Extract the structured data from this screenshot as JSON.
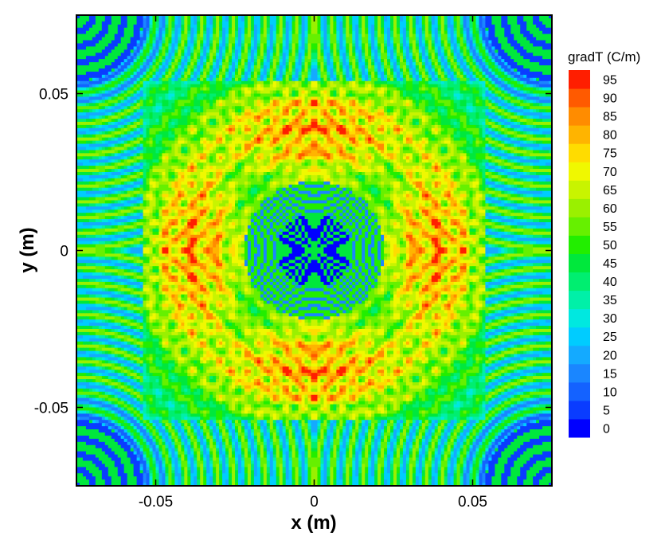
{
  "chart_data": {
    "type": "heatmap",
    "title": "",
    "xlabel": "x (m)",
    "ylabel": "y (m)",
    "xlim": [
      -0.075,
      0.075
    ],
    "ylim": [
      -0.075,
      0.075
    ],
    "x_ticks": [
      -0.05,
      0,
      0.05
    ],
    "y_ticks": [
      -0.05,
      0,
      0.05
    ],
    "x_tick_labels": [
      "-0.05",
      "0",
      "0.05"
    ],
    "y_tick_labels": [
      "-0.05",
      "0",
      "0.05"
    ],
    "colorbar": {
      "title": "gradT (C/m)",
      "levels": [
        0,
        5,
        10,
        15,
        20,
        25,
        30,
        35,
        40,
        45,
        50,
        55,
        60,
        65,
        70,
        75,
        80,
        85,
        90,
        95
      ],
      "labels": [
        "0",
        "5",
        "10",
        "15",
        "20",
        "25",
        "30",
        "35",
        "40",
        "45",
        "50",
        "55",
        "60",
        "65",
        "70",
        "75",
        "80",
        "85",
        "90",
        "95"
      ],
      "colors": [
        "#0000ff",
        "#0a3cff",
        "#1462ff",
        "#1a86ff",
        "#14aaff",
        "#00ccff",
        "#00e8e0",
        "#00f0a8",
        "#00ee70",
        "#00e83c",
        "#22ee00",
        "#66f000",
        "#9af000",
        "#c8f400",
        "#f0f800",
        "#ffdc00",
        "#ffb400",
        "#ff8c00",
        "#ff5a00",
        "#ff1e00"
      ],
      "position": "right"
    },
    "field_description_levels": {
      "center_spot": 0,
      "corners": 0,
      "ring_pattern": 40,
      "inner_lobes": 80,
      "hot_streaks": 95
    },
    "grid": false
  }
}
